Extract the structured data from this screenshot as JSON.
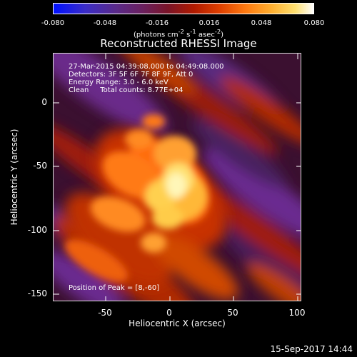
{
  "colorbar": {
    "ticks": [
      "-0.080",
      "-0.048",
      "-0.016",
      "0.016",
      "0.048",
      "0.080"
    ],
    "unit_prefix": "(photons cm",
    "unit_sup1": "-2",
    "unit_mid": " s",
    "unit_sup2": "-1",
    "unit_mid2": " asec",
    "unit_sup3": "-2",
    "unit_suffix": ")"
  },
  "plot": {
    "title": "Reconstructed RHESSI Image",
    "info_lines": [
      "27-Mar-2015 04:39:08.000 to 04:49:08.000",
      "Detectors: 3F 5F 6F 7F 8F 9F, Att 0",
      "Energy Range: 3.0 - 6.0 keV",
      "Clean     Total counts: 8.77E+04"
    ],
    "peak_text": "Position of Peak = [8,-60]",
    "x_axis_label": "Heliocentric X (arcsec)",
    "y_axis_label": "Heliocentric Y (arcsec)",
    "x_ticks": [
      "-50",
      "0",
      "50",
      "100"
    ],
    "y_ticks": [
      "0",
      "-50",
      "-100",
      "-150"
    ]
  },
  "footer": {
    "timestamp": "15-Sep-2017 14:44"
  }
}
